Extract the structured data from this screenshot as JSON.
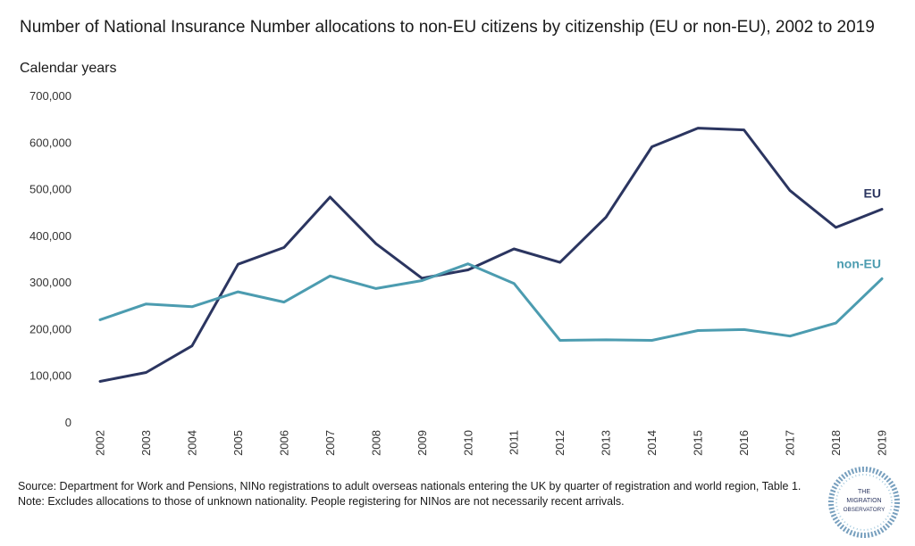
{
  "header": {
    "title": "Number of National Insurance Number allocations to non-EU citizens by citizenship (EU or non-EU), 2002 to 2019",
    "subtitle": "Calendar years"
  },
  "footer": {
    "source": "Source: Department for Work and Pensions, NINo registrations to adult overseas nationals entering the UK by quarter of registration and world region, Table 1.",
    "note": "Note: Excludes allocations to those of unknown nationality. People registering for NINos are not necessarily recent arrivals."
  },
  "logo": {
    "lines": [
      "THE",
      "MIGRATION",
      "OBSERVATORY"
    ]
  },
  "colors": {
    "eu": "#2b3560",
    "non_eu": "#4c9cb0"
  },
  "chart_data": {
    "type": "line",
    "title": "Number of National Insurance Number allocations to non-EU citizens by citizenship (EU or non-EU), 2002 to 2019",
    "subtitle": "Calendar years",
    "xlabel": "",
    "ylabel": "",
    "ylim": [
      0,
      700000
    ],
    "yticks": [
      "0",
      "100,000",
      "200,000",
      "300,000",
      "400,000",
      "500,000",
      "600,000",
      "700,000"
    ],
    "x": [
      "2002",
      "2003",
      "2004",
      "2005",
      "2006",
      "2007",
      "2008",
      "2009",
      "2010",
      "2011",
      "2012",
      "2013",
      "2014",
      "2015",
      "2016",
      "2017",
      "2018",
      "2019"
    ],
    "series": [
      {
        "name": "EU",
        "values": [
          89000,
          108000,
          165000,
          340000,
          376000,
          484000,
          384000,
          310000,
          328000,
          373000,
          344000,
          441000,
          592000,
          632000,
          628000,
          498000,
          419000,
          458000
        ]
      },
      {
        "name": "non-EU",
        "values": [
          221000,
          255000,
          249000,
          281000,
          259000,
          315000,
          288000,
          305000,
          341000,
          299000,
          177000,
          178000,
          177000,
          198000,
          200000,
          186000,
          214000,
          309000
        ]
      }
    ],
    "grid": false,
    "legend": "inline labels at line ends"
  }
}
